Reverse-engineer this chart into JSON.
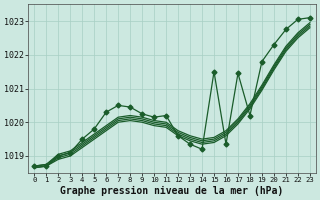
{
  "xlabel": "Graphe pression niveau de la mer (hPa)",
  "background_color": "#cce8e0",
  "plot_bg_color": "#cce8e0",
  "grid_color": "#a8cfc4",
  "line_color": "#1a5c2a",
  "xlim": [
    -0.5,
    23.5
  ],
  "ylim": [
    1018.5,
    1023.5
  ],
  "yticks": [
    1019,
    1020,
    1021,
    1022,
    1023
  ],
  "xticks": [
    0,
    1,
    2,
    3,
    4,
    5,
    6,
    7,
    8,
    9,
    10,
    11,
    12,
    13,
    14,
    15,
    16,
    17,
    18,
    19,
    20,
    21,
    22,
    23
  ],
  "smooth_lines": [
    [
      1018.7,
      1018.75,
      1019.05,
      1019.15,
      1019.4,
      1019.65,
      1019.9,
      1020.15,
      1020.2,
      1020.15,
      1020.05,
      1020.0,
      1019.75,
      1019.6,
      1019.5,
      1019.55,
      1019.75,
      1020.1,
      1020.55,
      1021.1,
      1021.7,
      1022.25,
      1022.65,
      1022.95
    ],
    [
      1018.7,
      1018.75,
      1019.0,
      1019.1,
      1019.35,
      1019.6,
      1019.85,
      1020.1,
      1020.15,
      1020.1,
      1020.0,
      1019.95,
      1019.7,
      1019.55,
      1019.45,
      1019.5,
      1019.7,
      1020.05,
      1020.5,
      1021.05,
      1021.65,
      1022.2,
      1022.6,
      1022.9
    ],
    [
      1018.65,
      1018.7,
      1018.95,
      1019.05,
      1019.3,
      1019.55,
      1019.8,
      1020.05,
      1020.1,
      1020.05,
      1019.95,
      1019.9,
      1019.65,
      1019.5,
      1019.4,
      1019.45,
      1019.65,
      1020.0,
      1020.45,
      1021.0,
      1021.6,
      1022.15,
      1022.55,
      1022.85
    ],
    [
      1018.65,
      1018.7,
      1018.9,
      1019.0,
      1019.25,
      1019.5,
      1019.75,
      1020.0,
      1020.05,
      1020.0,
      1019.9,
      1019.85,
      1019.6,
      1019.45,
      1019.35,
      1019.4,
      1019.6,
      1019.95,
      1020.4,
      1020.95,
      1021.55,
      1022.1,
      1022.5,
      1022.8
    ]
  ],
  "marker_line": [
    1018.7,
    1018.7,
    1019.0,
    1019.1,
    1019.5,
    1019.8,
    1020.3,
    1020.5,
    1020.45,
    1020.25,
    1020.15,
    1020.2,
    1019.6,
    1019.35,
    1019.2,
    1021.5,
    1019.35,
    1021.45,
    1020.2,
    1021.8,
    1022.3,
    1022.75,
    1023.05,
    1023.1
  ],
  "marker": "D",
  "markersize": 2.5,
  "linewidth": 0.9,
  "xlabel_fontsize": 7,
  "ytick_fontsize": 6,
  "xtick_fontsize": 5.2
}
